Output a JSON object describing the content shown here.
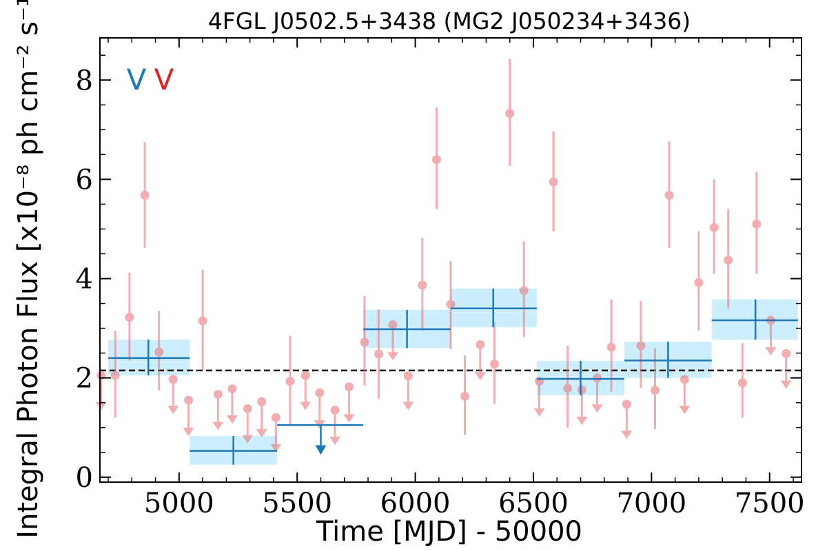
{
  "chart_data": {
    "type": "scatter",
    "title": "4FGL J0502.5+3438 (MG2 J050234+3436)",
    "xlabel": "Time [MJD] - 50000",
    "ylabel": "Integral Photon Flux [x10⁻⁸ ph cm⁻² s⁻¹]",
    "xlim": [
      4665,
      7635
    ],
    "ylim": [
      -0.1,
      8.85
    ],
    "xticks": [
      5000,
      5500,
      6000,
      6500,
      7000,
      7500
    ],
    "xtick_labels": [
      "5000",
      "5500",
      "6000",
      "6500",
      "7000",
      "7500"
    ],
    "yticks": [
      0,
      2,
      4,
      6,
      8
    ],
    "ytick_labels": [
      "0",
      "2",
      "4",
      "6",
      "8"
    ],
    "mean_flux": 2.15,
    "corner_labels": [
      {
        "text": "V",
        "color": "#1f77b4"
      },
      {
        "text": "V",
        "color": "#d62728"
      }
    ],
    "series": [
      {
        "name": "",
        "color": "#e8787c",
        "kind": "short-bin",
        "points": [
          {
            "x": 4670,
            "y": 2.05,
            "ul": true,
            "lo": 1.35
          },
          {
            "x": 4730,
            "y": 2.05,
            "lo": 1.2,
            "hi": 2.95
          },
          {
            "x": 4790,
            "y": 3.22,
            "lo": 2.35,
            "hi": 4.12
          },
          {
            "x": 4855,
            "y": 5.68,
            "lo": 4.62,
            "hi": 6.75
          },
          {
            "x": 4915,
            "y": 2.52,
            "lo": 1.75,
            "hi": 3.35
          },
          {
            "x": 4975,
            "y": 1.97,
            "ul": true,
            "lo": 1.27
          },
          {
            "x": 5040,
            "y": 1.55,
            "ul": true,
            "lo": 0.83
          },
          {
            "x": 5100,
            "y": 3.15,
            "lo": 2.15,
            "hi": 4.18
          },
          {
            "x": 5165,
            "y": 1.67,
            "ul": true,
            "lo": 0.95
          },
          {
            "x": 5225,
            "y": 1.78,
            "ul": true,
            "lo": 1.08
          },
          {
            "x": 5290,
            "y": 1.38,
            "ul": true,
            "lo": 0.68
          },
          {
            "x": 5350,
            "y": 1.52,
            "ul": true,
            "lo": 0.8
          },
          {
            "x": 5410,
            "y": 1.2,
            "ul": true,
            "lo": 0.5
          },
          {
            "x": 5470,
            "y": 1.93,
            "lo": 1.05,
            "hi": 2.85
          },
          {
            "x": 5535,
            "y": 2.05,
            "ul": true,
            "lo": 1.35
          },
          {
            "x": 5595,
            "y": 1.7,
            "ul": true,
            "lo": 0.98
          },
          {
            "x": 5660,
            "y": 1.35,
            "ul": true,
            "lo": 0.65
          },
          {
            "x": 5720,
            "y": 1.82,
            "ul": true,
            "lo": 1.1
          },
          {
            "x": 5785,
            "y": 2.72,
            "lo": 1.85,
            "hi": 3.65
          },
          {
            "x": 5845,
            "y": 2.48,
            "lo": 1.58,
            "hi": 3.38
          },
          {
            "x": 5905,
            "y": 3.07,
            "ul": true,
            "lo": 2.35
          },
          {
            "x": 5970,
            "y": 2.04,
            "ul": true,
            "lo": 1.35
          },
          {
            "x": 6030,
            "y": 3.87,
            "lo": 2.95,
            "hi": 4.82
          },
          {
            "x": 6090,
            "y": 6.4,
            "lo": 5.4,
            "hi": 7.45
          },
          {
            "x": 6150,
            "y": 3.48,
            "lo": 2.58,
            "hi": 4.35
          },
          {
            "x": 6210,
            "y": 1.63,
            "lo": 0.85,
            "hi": 2.45
          },
          {
            "x": 6275,
            "y": 2.67,
            "ul": true,
            "lo": 1.95
          },
          {
            "x": 6335,
            "y": 2.28,
            "lo": 1.48,
            "hi": 3.12
          },
          {
            "x": 6400,
            "y": 7.33,
            "lo": 6.27,
            "hi": 8.43
          },
          {
            "x": 6460,
            "y": 3.76,
            "lo": 2.82,
            "hi": 4.75
          },
          {
            "x": 6525,
            "y": 1.93,
            "ul": true,
            "lo": 1.22
          },
          {
            "x": 6585,
            "y": 5.95,
            "lo": 4.95,
            "hi": 6.97
          },
          {
            "x": 6645,
            "y": 1.79,
            "lo": 1.0,
            "hi": 2.65
          },
          {
            "x": 6705,
            "y": 1.76,
            "ul": true,
            "lo": 1.05
          },
          {
            "x": 6770,
            "y": 2.0,
            "ul": true,
            "lo": 1.3
          },
          {
            "x": 6830,
            "y": 2.62,
            "lo": 1.72,
            "hi": 3.58
          },
          {
            "x": 6895,
            "y": 1.47,
            "ul": true,
            "lo": 0.77
          },
          {
            "x": 6955,
            "y": 2.65,
            "lo": 1.8,
            "hi": 3.55
          },
          {
            "x": 7015,
            "y": 1.75,
            "lo": 0.97,
            "hi": 2.6
          },
          {
            "x": 7075,
            "y": 5.68,
            "lo": 4.62,
            "hi": 6.77
          },
          {
            "x": 7140,
            "y": 1.97,
            "ul": true,
            "lo": 1.27
          },
          {
            "x": 7200,
            "y": 3.92,
            "lo": 2.95,
            "hi": 4.95
          },
          {
            "x": 7265,
            "y": 5.03,
            "lo": 4.1,
            "hi": 6.0
          },
          {
            "x": 7325,
            "y": 4.37,
            "lo": 3.4,
            "hi": 5.4
          },
          {
            "x": 7385,
            "y": 1.9,
            "lo": 1.2,
            "hi": 2.7
          },
          {
            "x": 7445,
            "y": 5.1,
            "lo": 4.1,
            "hi": 6.15
          },
          {
            "x": 7505,
            "y": 3.16,
            "ul": true,
            "lo": 2.45
          },
          {
            "x": 7570,
            "y": 2.49,
            "ul": true,
            "lo": 1.78
          }
        ]
      },
      {
        "name": "",
        "color": "#1f77b4",
        "band_color": "#cdeefc",
        "kind": "long-bin",
        "points": [
          {
            "x0": 4700,
            "x1": 5045,
            "y": 2.4,
            "lo": 2.05,
            "hi": 2.77,
            "xc": 4870
          },
          {
            "x0": 5045,
            "x1": 5415,
            "y": 0.53,
            "lo": 0.25,
            "hi": 0.83,
            "xc": 5230
          },
          {
            "x0": 5415,
            "x1": 5780,
            "y": 1.05,
            "ul": true,
            "lo": 0.45,
            "xc": 5600
          },
          {
            "x0": 5780,
            "x1": 6150,
            "y": 2.98,
            "lo": 2.6,
            "hi": 3.37,
            "xc": 5965
          },
          {
            "x0": 6150,
            "x1": 6515,
            "y": 3.4,
            "lo": 3.02,
            "hi": 3.8,
            "xc": 6330
          },
          {
            "x0": 6515,
            "x1": 6885,
            "y": 1.98,
            "lo": 1.65,
            "hi": 2.34,
            "xc": 6700
          },
          {
            "x0": 6885,
            "x1": 7255,
            "y": 2.35,
            "lo": 2.0,
            "hi": 2.73,
            "xc": 7070
          },
          {
            "x0": 7255,
            "x1": 7620,
            "y": 3.16,
            "lo": 2.77,
            "hi": 3.58,
            "xc": 7440
          }
        ]
      }
    ]
  }
}
